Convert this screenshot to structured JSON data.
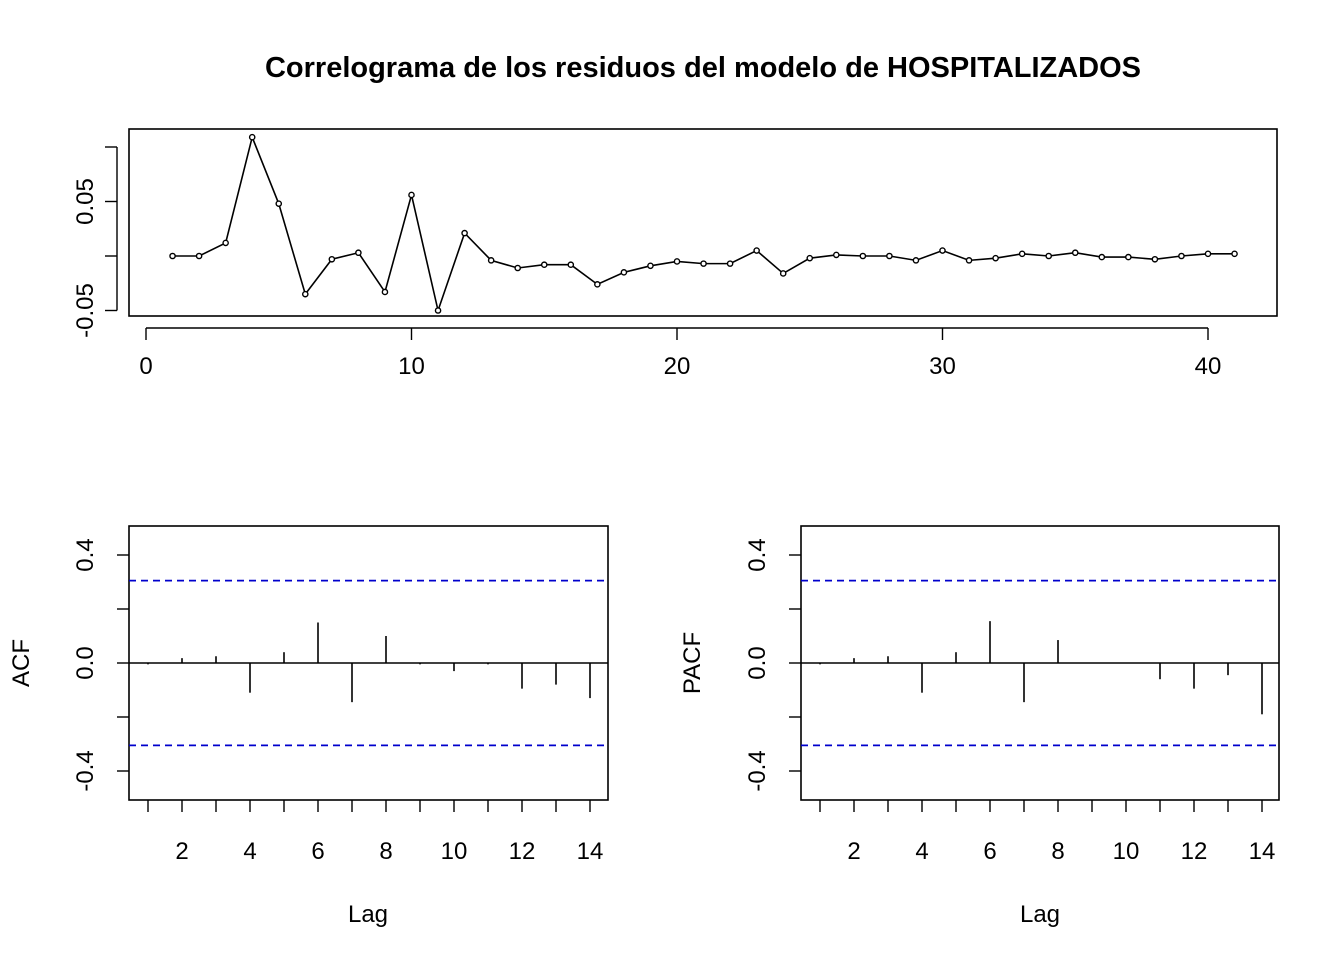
{
  "chart_data": [
    {
      "type": "line",
      "title": "Correlograma de los residuos del modelo de HOSPITALIZADOS",
      "xlabel": "",
      "ylabel": "",
      "xlim": [
        0,
        42
      ],
      "ylim": [
        -0.055,
        0.11
      ],
      "x_ticks": [
        0,
        10,
        20,
        30,
        40
      ],
      "x_tick_labels": [
        "0",
        "10",
        "20",
        "30",
        "40"
      ],
      "y_ticks": [
        -0.05,
        0.05
      ],
      "y_tick_labels": [
        "-0.05",
        "0.05"
      ],
      "y_minor_ticks": [
        -0.05,
        0,
        0.05,
        0.1
      ],
      "markers": true,
      "x": [
        1,
        2,
        3,
        4,
        5,
        6,
        7,
        8,
        9,
        10,
        11,
        12,
        13,
        14,
        15,
        16,
        17,
        18,
        19,
        20,
        21,
        22,
        23,
        24,
        25,
        26,
        27,
        28,
        29,
        30,
        31,
        32,
        33,
        34,
        35,
        36,
        37,
        38,
        39,
        40,
        41
      ],
      "values": [
        0.0,
        0.0,
        0.012,
        0.109,
        0.048,
        -0.035,
        -0.003,
        0.003,
        -0.033,
        0.056,
        -0.05,
        0.021,
        -0.004,
        -0.011,
        -0.008,
        -0.008,
        -0.026,
        -0.015,
        -0.009,
        -0.005,
        -0.007,
        -0.007,
        0.005,
        -0.016,
        -0.002,
        0.001,
        0.0,
        0.0,
        -0.004,
        0.005,
        -0.004,
        -0.002,
        0.002,
        0.0,
        0.003,
        -0.001,
        -0.001,
        -0.003,
        0.0,
        0.002,
        0.002
      ],
      "color": "#000000"
    },
    {
      "type": "bar",
      "title": "",
      "xlabel": "Lag",
      "ylabel": "ACF",
      "xlim": [
        0.6,
        14.5
      ],
      "ylim": [
        -0.5,
        0.5
      ],
      "x_ticks": [
        2,
        4,
        6,
        8,
        10,
        12,
        14
      ],
      "x_tick_labels": [
        "2",
        "4",
        "6",
        "8",
        "10",
        "12",
        "14"
      ],
      "x_minor_ticks": [
        1,
        2,
        3,
        4,
        5,
        6,
        7,
        8,
        9,
        10,
        11,
        12,
        13,
        14
      ],
      "y_ticks": [
        -0.4,
        0.0,
        0.4
      ],
      "y_tick_labels": [
        "-0.4",
        "0.0",
        "0.4"
      ],
      "y_minor_ticks": [
        -0.4,
        -0.2,
        0.0,
        0.2,
        0.4
      ],
      "lags": [
        1,
        2,
        3,
        4,
        5,
        6,
        7,
        8,
        9,
        10,
        11,
        12,
        13,
        14
      ],
      "values": [
        -0.005,
        0.018,
        0.025,
        -0.11,
        0.04,
        0.15,
        -0.145,
        0.1,
        -0.005,
        -0.03,
        -0.005,
        -0.095,
        -0.08,
        -0.13
      ],
      "confidence_bound": 0.305,
      "bound_color": "#0000cc",
      "color": "#000000"
    },
    {
      "type": "bar",
      "title": "",
      "xlabel": "Lag",
      "ylabel": "PACF",
      "xlim": [
        0.6,
        14.5
      ],
      "ylim": [
        -0.5,
        0.5
      ],
      "x_ticks": [
        2,
        4,
        6,
        8,
        10,
        12,
        14
      ],
      "x_tick_labels": [
        "2",
        "4",
        "6",
        "8",
        "10",
        "12",
        "14"
      ],
      "x_minor_ticks": [
        1,
        2,
        3,
        4,
        5,
        6,
        7,
        8,
        9,
        10,
        11,
        12,
        13,
        14
      ],
      "y_ticks": [
        -0.4,
        0.0,
        0.4
      ],
      "y_tick_labels": [
        "-0.4",
        "0.0",
        "0.4"
      ],
      "y_minor_ticks": [
        -0.4,
        -0.2,
        0.0,
        0.2,
        0.4
      ],
      "lags": [
        1,
        2,
        3,
        4,
        5,
        6,
        7,
        8,
        9,
        10,
        11,
        12,
        13,
        14
      ],
      "values": [
        -0.005,
        0.018,
        0.025,
        -0.11,
        0.04,
        0.155,
        -0.145,
        0.085,
        0.0,
        0.0,
        -0.06,
        -0.095,
        -0.045,
        -0.19
      ],
      "confidence_bound": 0.305,
      "bound_color": "#0000cc",
      "color": "#000000"
    }
  ]
}
